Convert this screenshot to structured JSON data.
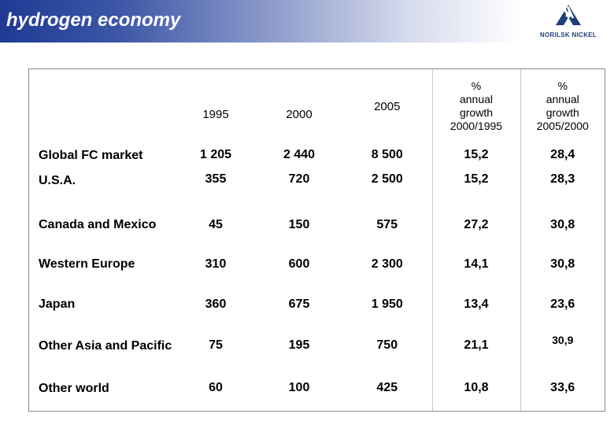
{
  "header": {
    "title": "hydrogen economy",
    "logo_text": "NORILSK NICKEL"
  },
  "table": {
    "columns": [
      "",
      "1995",
      "2000",
      "2005",
      "% annual growth 2000/1995",
      "% annual growth 2005/2000"
    ],
    "column_lines": [
      [
        "1995"
      ],
      [
        "2000"
      ],
      [
        "2005"
      ],
      [
        "%",
        "annual",
        "growth",
        "2000/1995"
      ],
      [
        "%",
        "annual",
        "growth",
        "2005/2000"
      ]
    ],
    "rows": [
      {
        "label": "Global FC market",
        "values": [
          "1 205",
          "2 440",
          "8 500",
          "15,2",
          "28,4"
        ]
      },
      {
        "label": "U.S.A.",
        "values": [
          "355",
          "720",
          "2 500",
          "15,2",
          "28,3"
        ]
      },
      {
        "label": "Canada and Mexico",
        "values": [
          "45",
          "150",
          "575",
          "27,2",
          "30,8"
        ]
      },
      {
        "label": "Western Europe",
        "values": [
          "310",
          "600",
          "2 300",
          "14,1",
          "30,8"
        ]
      },
      {
        "label": "Japan",
        "values": [
          "360",
          "675",
          "1 950",
          "13,4",
          "23,6"
        ]
      },
      {
        "label": "Other Asia and Pacific",
        "values": [
          "75",
          "195",
          "750",
          "21,1",
          "30,9"
        ]
      },
      {
        "label": "Other world",
        "values": [
          "60",
          "100",
          "425",
          "10,8",
          "33,6"
        ]
      }
    ]
  },
  "colors": {
    "header_dark": "#1f3a94",
    "logo": "#1d3f7a"
  }
}
